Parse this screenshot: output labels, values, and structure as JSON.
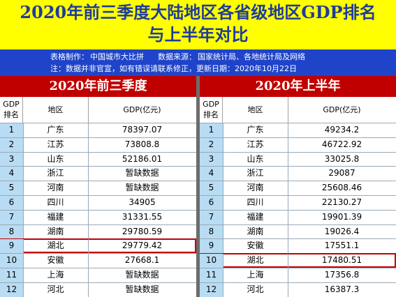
{
  "title": {
    "line1": "2020年前三季度大陆地区各省级地区GDP排名",
    "line2": "与上半年对比"
  },
  "info": {
    "maker_label": "表格制作：",
    "maker": "中国城市大比拼",
    "source_label": "数据来源：",
    "source": "国家统计局、各地统计局及网络",
    "note": "注：数据并非官宣，如有错误请联系修正，更新日期：2020年10月22日"
  },
  "columns": {
    "rank": "GDP排名",
    "region": "地区",
    "gdp": "GDP(亿元)"
  },
  "left": {
    "title": "2020年前三季度",
    "rows": [
      {
        "rank": "1",
        "region": "广东",
        "gdp": "78397.07"
      },
      {
        "rank": "2",
        "region": "江苏",
        "gdp": "73808.8"
      },
      {
        "rank": "3",
        "region": "山东",
        "gdp": "52186.01"
      },
      {
        "rank": "4",
        "region": "浙江",
        "gdp": "暂缺数据"
      },
      {
        "rank": "5",
        "region": "河南",
        "gdp": "暂缺数据"
      },
      {
        "rank": "6",
        "region": "四川",
        "gdp": "34905"
      },
      {
        "rank": "7",
        "region": "福建",
        "gdp": "31331.55"
      },
      {
        "rank": "8",
        "region": "湖南",
        "gdp": "29780.59"
      },
      {
        "rank": "9",
        "region": "湖北",
        "gdp": "29779.42"
      },
      {
        "rank": "10",
        "region": "安徽",
        "gdp": "27668.1"
      },
      {
        "rank": "11",
        "region": "上海",
        "gdp": "暂缺数据"
      },
      {
        "rank": "12",
        "region": "河北",
        "gdp": "暂缺数据"
      }
    ]
  },
  "right": {
    "title": "2020年上半年",
    "rows": [
      {
        "rank": "1",
        "region": "广东",
        "gdp": "49234.2"
      },
      {
        "rank": "2",
        "region": "江苏",
        "gdp": "46722.92"
      },
      {
        "rank": "3",
        "region": "山东",
        "gdp": "33025.8"
      },
      {
        "rank": "4",
        "region": "浙江",
        "gdp": "29087"
      },
      {
        "rank": "5",
        "region": "河南",
        "gdp": "25608.46"
      },
      {
        "rank": "6",
        "region": "四川",
        "gdp": "22130.27"
      },
      {
        "rank": "7",
        "region": "福建",
        "gdp": "19901.39"
      },
      {
        "rank": "8",
        "region": "湖南",
        "gdp": "19026.4"
      },
      {
        "rank": "9",
        "region": "安徽",
        "gdp": "17551.1"
      },
      {
        "rank": "10",
        "region": "湖北",
        "gdp": "17480.51"
      },
      {
        "rank": "11",
        "region": "上海",
        "gdp": "17356.8"
      },
      {
        "rank": "12",
        "region": "河北",
        "gdp": "16387.3"
      }
    ]
  },
  "highlight": {
    "left": "湖北",
    "right": "湖北"
  },
  "colors": {
    "title_bg": "#ffff00",
    "title_text": "#1e3c9a",
    "info_bg": "#1f44c9",
    "section_header_bg": "#c00000",
    "rank_cell_bg": "#b8dcf3",
    "highlight_border": "#c00000"
  }
}
